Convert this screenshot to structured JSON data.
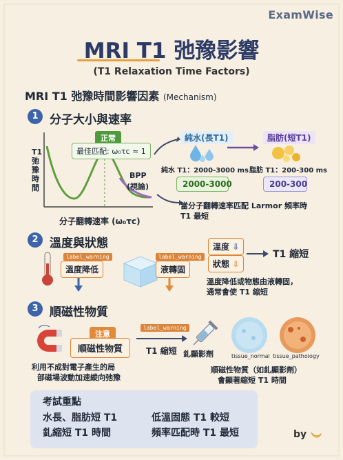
{
  "brand": "ExamWise",
  "title": "MRI T1 弛豫影響",
  "subtitle": "(T1 Relaxation Time Factors)",
  "heading": "MRI T1 弛豫時間影響因素",
  "heading_note": "(Mechanism)",
  "section1": {
    "number": "1",
    "title": "分子大小與速率",
    "y_axis_label": [
      "T1",
      "弛",
      "豫",
      "時",
      "間"
    ],
    "x_axis_label": "分子翻轉速率 (ω₀τc)",
    "normal_tag": "正常",
    "best_match": "最佳匹配: ω₀τc ≈ 1",
    "bpp_label": "BPP",
    "bpp_sub": "(視論)",
    "water_label": "純水(長T1)",
    "fat_label": "脂肪(短T1)",
    "water_t1": "純水 T1：2000-3000 ms",
    "fat_t1": "脂肪 T1：200-300 ms",
    "water_range": "2000-3000",
    "fat_range": "200-300",
    "larmor_note_1": "當分子翻轉速率匹配 Larmor 頻率時",
    "larmor_note_2": "T1 最短"
  },
  "section2": {
    "number": "2",
    "title": "溫度與狀態",
    "warning_tag": "label_warning",
    "temp_drop": "溫度降低",
    "liquid_to_solid": "液轉固",
    "temp_down": "溫度",
    "state_down": "狀態",
    "t1_short": "T1 縮短",
    "explain_1": "溫度降低或物態由液轉固，",
    "explain_2": "通常會使 T1 縮短"
  },
  "section3": {
    "number": "3",
    "title": "順磁性物質",
    "attention": "注意",
    "paramagnetic": "順磁性物質",
    "warning_tag": "label_warning",
    "t1_shorten": "T1 縮短",
    "gadolinium": "釓顯影劑",
    "tissue_normal": "tissue_normal",
    "tissue_pathology": "tissue_pathology",
    "explain_left_1": "利用不成對電子產生的局",
    "explain_left_2": "部磁場波動加速縱向弛豫",
    "explain_right_1": "順磁性物質（如釓顯影劑）",
    "explain_right_2": "會顯著縮短 T1 時間"
  },
  "summary": {
    "title": "考試重點",
    "items": [
      "水長、脂肪短 T1",
      "低溫固態 T1 較短",
      "釓縮短 T1 時間",
      "頻率匹配時 T1 最短"
    ]
  },
  "signature": "by"
}
